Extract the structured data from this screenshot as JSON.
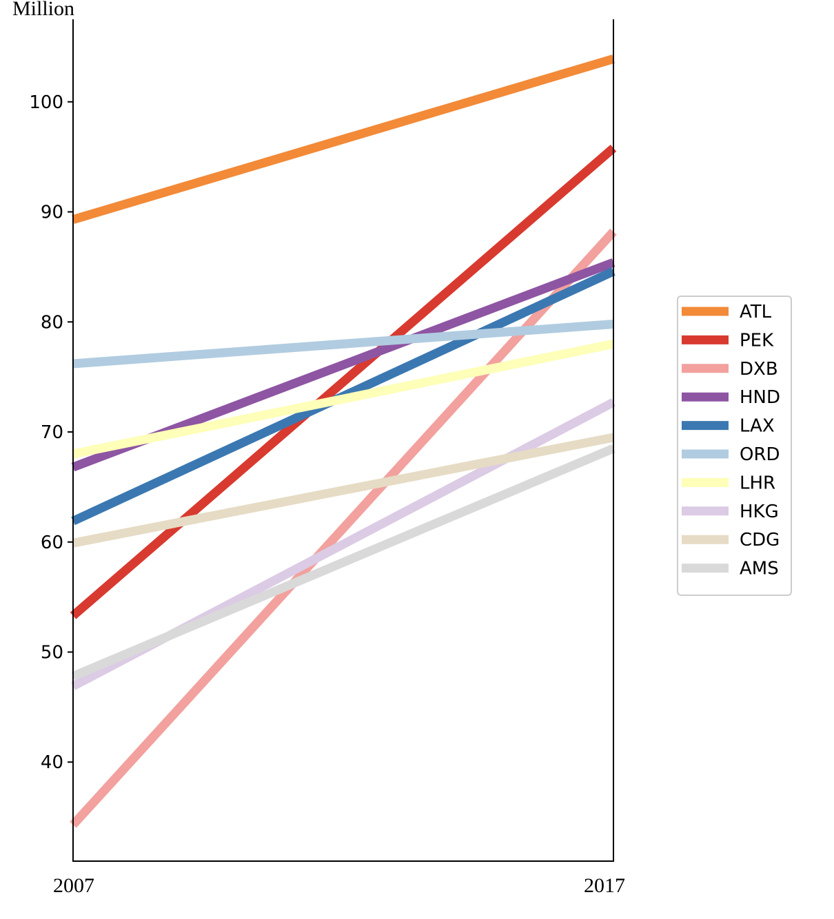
{
  "chart_data": {
    "type": "line",
    "title": "",
    "xlabel": "",
    "ylabel": "Million",
    "x": [
      "2007",
      "2017"
    ],
    "ylim": [
      31,
      107.5
    ],
    "yticks": [
      40,
      50,
      60,
      70,
      80,
      90,
      100
    ],
    "grid": false,
    "legend_position": "right",
    "series": [
      {
        "name": "ATL",
        "values": [
          89.3,
          103.9
        ],
        "color": "#f28a38"
      },
      {
        "name": "PEK",
        "values": [
          53.3,
          95.8
        ],
        "color": "#d83a30"
      },
      {
        "name": "DXB",
        "values": [
          34.3,
          88.2
        ],
        "color": "#f2a19e"
      },
      {
        "name": "HND",
        "values": [
          66.8,
          85.4
        ],
        "color": "#8e55a3"
      },
      {
        "name": "LAX",
        "values": [
          61.9,
          84.6
        ],
        "color": "#3b78b1"
      },
      {
        "name": "ORD",
        "values": [
          76.2,
          79.8
        ],
        "color": "#b1cce0"
      },
      {
        "name": "LHR",
        "values": [
          68.0,
          78.0
        ],
        "color": "#feffb8"
      },
      {
        "name": "HKG",
        "values": [
          46.9,
          72.7
        ],
        "color": "#dccbe4"
      },
      {
        "name": "CDG",
        "values": [
          59.9,
          69.5
        ],
        "color": "#e6dbc4"
      },
      {
        "name": "AMS",
        "values": [
          47.8,
          68.5
        ],
        "color": "#d9d9d9"
      }
    ]
  }
}
